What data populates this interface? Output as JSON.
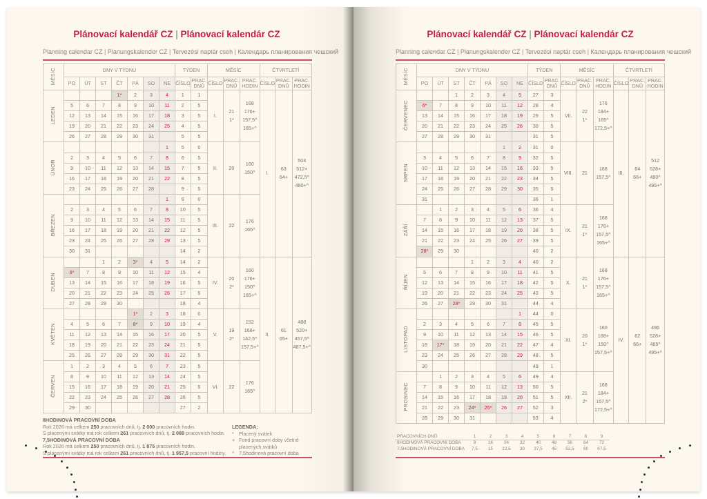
{
  "title_a": "Plánovací kalendář CZ",
  "title_sep": "|",
  "title_b": "Plánovací kalendár CZ",
  "subtitle": "Planning calendar CZ | Planungskalender CZ | Tervezési naptár cseh | Календарь планирования чешский",
  "headers": {
    "month": "MĚSÍC",
    "days_group": "DNY V TÝDNU",
    "week_group": "TÝDEN",
    "month_group": "MĚSÍC",
    "quarter_group": "ČTVRTLETÍ",
    "days": [
      "PO",
      "ÚT",
      "ST",
      "ČT",
      "PÁ",
      "SO",
      "NE"
    ],
    "number": "ČÍSLO",
    "workdays": "PRAC. DNŮ",
    "hours": "PRAC. HODIN"
  },
  "colors": {
    "accent": "#c8184f",
    "page": "#fcf8ee"
  },
  "left": {
    "months": [
      {
        "name": "LEDEN",
        "roman": "I.",
        "days": "21",
        "paid": "1*",
        "hours": [
          "168",
          "176+",
          "157,5^",
          "165+^"
        ],
        "weeks": [
          [
            "",
            "",
            "",
            "1*",
            "2",
            "3",
            "4",
            "1",
            "1"
          ],
          [
            "5",
            "6",
            "7",
            "8",
            "9",
            "10",
            "11",
            "2",
            "5"
          ],
          [
            "12",
            "13",
            "14",
            "15",
            "16",
            "17",
            "18",
            "3",
            "5"
          ],
          [
            "19",
            "20",
            "21",
            "22",
            "23",
            "24",
            "25",
            "4",
            "5"
          ],
          [
            "26",
            "27",
            "28",
            "29",
            "30",
            "31",
            "",
            "5",
            "5"
          ]
        ],
        "quarter": {
          "roman": "I.",
          "days": "63",
          "days_plus": "64+",
          "hours": [
            "504",
            "512+",
            "472,5^",
            "480+^"
          ]
        }
      },
      {
        "name": "ÚNOR",
        "roman": "II.",
        "days": "20",
        "paid": "",
        "hours": [
          "160",
          "150^"
        ],
        "weeks": [
          [
            "",
            "",
            "",
            "",
            "",
            "",
            "1",
            "5",
            "0"
          ],
          [
            "2",
            "3",
            "4",
            "5",
            "6",
            "7",
            "8",
            "6",
            "5"
          ],
          [
            "9",
            "10",
            "11",
            "12",
            "13",
            "14",
            "15",
            "7",
            "5"
          ],
          [
            "16",
            "17",
            "18",
            "19",
            "20",
            "21",
            "22",
            "8",
            "5"
          ],
          [
            "23",
            "24",
            "25",
            "26",
            "27",
            "28",
            "",
            "9",
            "5"
          ]
        ]
      },
      {
        "name": "BŘEZEN",
        "roman": "III.",
        "days": "22",
        "paid": "",
        "hours": [
          "176",
          "165^"
        ],
        "weeks": [
          [
            "",
            "",
            "",
            "",
            "",
            "",
            "1",
            "9",
            "0"
          ],
          [
            "2",
            "3",
            "4",
            "5",
            "6",
            "7",
            "8",
            "10",
            "5"
          ],
          [
            "9",
            "10",
            "11",
            "12",
            "13",
            "14",
            "15",
            "11",
            "5"
          ],
          [
            "16",
            "17",
            "18",
            "19",
            "20",
            "21",
            "22",
            "12",
            "5"
          ],
          [
            "23",
            "24",
            "25",
            "26",
            "27",
            "28",
            "29",
            "13",
            "5"
          ],
          [
            "30",
            "31",
            "",
            "",
            "",
            "",
            "",
            "14",
            "2"
          ]
        ]
      },
      {
        "name": "DUBEN",
        "roman": "IV.",
        "days": "20",
        "paid": "2*",
        "hours": [
          "160",
          "176+",
          "150^",
          "165+^"
        ],
        "weeks": [
          [
            "",
            "",
            "1",
            "2",
            "3*",
            "4",
            "5",
            "14",
            "2"
          ],
          [
            "6*",
            "7",
            "8",
            "9",
            "10",
            "11",
            "12",
            "15",
            "4"
          ],
          [
            "13",
            "14",
            "15",
            "16",
            "17",
            "18",
            "19",
            "16",
            "5"
          ],
          [
            "20",
            "21",
            "22",
            "23",
            "24",
            "25",
            "26",
            "17",
            "5"
          ],
          [
            "27",
            "28",
            "29",
            "30",
            "",
            "",
            "",
            "18",
            "4"
          ]
        ],
        "quarter": {
          "roman": "II.",
          "days": "61",
          "days_plus": "65+",
          "hours": [
            "488",
            "520+",
            "457,5^",
            "487,5+^"
          ]
        }
      },
      {
        "name": "KVĚTEN",
        "roman": "V.",
        "days": "19",
        "paid": "2*",
        "hours": [
          "152",
          "168+",
          "142,5^",
          "157,5+^"
        ],
        "weeks": [
          [
            "",
            "",
            "",
            "",
            "1*",
            "2",
            "3",
            "18",
            "0"
          ],
          [
            "4",
            "5",
            "6",
            "7",
            "8*",
            "9",
            "10",
            "19",
            "4"
          ],
          [
            "11",
            "12",
            "13",
            "14",
            "15",
            "16",
            "17",
            "20",
            "5"
          ],
          [
            "18",
            "19",
            "20",
            "21",
            "22",
            "23",
            "24",
            "21",
            "5"
          ],
          [
            "25",
            "26",
            "27",
            "28",
            "29",
            "30",
            "31",
            "22",
            "5"
          ]
        ]
      },
      {
        "name": "ČERVEN",
        "roman": "VI.",
        "days": "22",
        "paid": "",
        "hours": [
          "176",
          "165^"
        ],
        "weeks": [
          [
            "1",
            "2",
            "3",
            "4",
            "5",
            "6",
            "7",
            "23",
            "5"
          ],
          [
            "8",
            "9",
            "10",
            "11",
            "12",
            "13",
            "14",
            "24",
            "5"
          ],
          [
            "15",
            "16",
            "17",
            "18",
            "19",
            "20",
            "21",
            "25",
            "5"
          ],
          [
            "22",
            "23",
            "24",
            "25",
            "26",
            "27",
            "28",
            "26",
            "5"
          ],
          [
            "29",
            "30",
            "",
            "",
            "",
            "",
            "",
            "27",
            "2"
          ]
        ]
      }
    ]
  },
  "right": {
    "months": [
      {
        "name": "ČERVENEC",
        "roman": "VII.",
        "days": "22",
        "paid": "1*",
        "hours": [
          "176",
          "184+",
          "165^",
          "172,5+^"
        ],
        "weeks": [
          [
            "",
            "",
            "1",
            "2",
            "3",
            "4",
            "5",
            "27",
            "3"
          ],
          [
            "6*",
            "7",
            "8",
            "9",
            "10",
            "11",
            "12",
            "28",
            "4"
          ],
          [
            "13",
            "14",
            "15",
            "16",
            "17",
            "18",
            "19",
            "29",
            "5"
          ],
          [
            "20",
            "21",
            "22",
            "23",
            "24",
            "25",
            "26",
            "30",
            "5"
          ],
          [
            "27",
            "28",
            "29",
            "30",
            "31",
            "",
            "",
            "31",
            "5"
          ]
        ],
        "quarter": {
          "roman": "III.",
          "days": "64",
          "days_plus": "66+",
          "hours": [
            "512",
            "528+",
            "480^",
            "495+^"
          ]
        }
      },
      {
        "name": "SRPEN",
        "roman": "VIII.",
        "days": "21",
        "paid": "",
        "hours": [
          "168",
          "157,5^"
        ],
        "weeks": [
          [
            "",
            "",
            "",
            "",
            "",
            "1",
            "2",
            "31",
            "0"
          ],
          [
            "3",
            "4",
            "5",
            "6",
            "7",
            "8",
            "9",
            "32",
            "5"
          ],
          [
            "10",
            "11",
            "12",
            "13",
            "14",
            "15",
            "16",
            "33",
            "5"
          ],
          [
            "17",
            "18",
            "19",
            "20",
            "21",
            "22",
            "23",
            "34",
            "5"
          ],
          [
            "24",
            "25",
            "26",
            "27",
            "28",
            "29",
            "30",
            "35",
            "5"
          ],
          [
            "31",
            "",
            "",
            "",
            "",
            "",
            "",
            "36",
            "1"
          ]
        ]
      },
      {
        "name": "ZÁŘÍ",
        "roman": "IX.",
        "days": "21",
        "paid": "1*",
        "hours": [
          "168",
          "176+",
          "157,5^",
          "165+^"
        ],
        "weeks": [
          [
            "",
            "1",
            "2",
            "3",
            "4",
            "5",
            "6",
            "36",
            "4"
          ],
          [
            "7",
            "8",
            "9",
            "10",
            "11",
            "12",
            "13",
            "37",
            "5"
          ],
          [
            "14",
            "15",
            "16",
            "17",
            "18",
            "19",
            "20",
            "38",
            "5"
          ],
          [
            "21",
            "22",
            "23",
            "24",
            "25",
            "26",
            "27",
            "39",
            "5"
          ],
          [
            "28*",
            "29",
            "30",
            "",
            "",
            "",
            "",
            "40",
            "2"
          ]
        ]
      },
      {
        "name": "ŘÍJEN",
        "roman": "X.",
        "days": "21",
        "paid": "1*",
        "hours": [
          "168",
          "176+",
          "157,5^",
          "165+^"
        ],
        "weeks": [
          [
            "",
            "",
            "",
            "1",
            "2",
            "3",
            "4",
            "40",
            "2"
          ],
          [
            "5",
            "6",
            "7",
            "8",
            "9",
            "10",
            "11",
            "41",
            "5"
          ],
          [
            "12",
            "13",
            "14",
            "15",
            "16",
            "17",
            "18",
            "42",
            "5"
          ],
          [
            "19",
            "20",
            "21",
            "22",
            "23",
            "24",
            "25",
            "43",
            "5"
          ],
          [
            "26",
            "27",
            "28*",
            "29",
            "30",
            "31",
            "",
            "44",
            "4"
          ]
        ],
        "quarter": {
          "roman": "IV.",
          "days": "62",
          "days_plus": "66+",
          "hours": [
            "496",
            "528+",
            "465^",
            "495+^"
          ]
        }
      },
      {
        "name": "LISTOPAD",
        "roman": "XI.",
        "days": "20",
        "paid": "1*",
        "hours": [
          "160",
          "168+",
          "150^",
          "157,5+^"
        ],
        "weeks": [
          [
            "",
            "",
            "",
            "",
            "",
            "",
            "1",
            "44",
            "0"
          ],
          [
            "2",
            "3",
            "4",
            "5",
            "6",
            "7",
            "8",
            "45",
            "5"
          ],
          [
            "9",
            "10",
            "11",
            "12",
            "13",
            "14",
            "15",
            "46",
            "5"
          ],
          [
            "16",
            "17*",
            "18",
            "19",
            "20",
            "21",
            "22",
            "47",
            "4"
          ],
          [
            "23",
            "24",
            "25",
            "26",
            "27",
            "28",
            "29",
            "48",
            "5"
          ],
          [
            "30",
            "",
            "",
            "",
            "",
            "",
            "",
            "49",
            "1"
          ]
        ]
      },
      {
        "name": "PROSINEC",
        "roman": "XII.",
        "days": "21",
        "paid": "2*",
        "hours": [
          "168",
          "184+",
          "157,5^",
          "172,5+^"
        ],
        "weeks": [
          [
            "",
            "1",
            "2",
            "3",
            "4",
            "5",
            "6",
            "49",
            "4"
          ],
          [
            "7",
            "8",
            "9",
            "10",
            "11",
            "12",
            "13",
            "50",
            "5"
          ],
          [
            "14",
            "15",
            "16",
            "17",
            "18",
            "19",
            "20",
            "51",
            "5"
          ],
          [
            "21",
            "22",
            "23",
            "24*",
            "25*",
            "26",
            "27",
            "52",
            "3"
          ],
          [
            "28",
            "29",
            "30",
            "31",
            "",
            "",
            "",
            "53",
            "4"
          ]
        ]
      }
    ]
  },
  "notes": {
    "h8_title": "8HODINOVÁ PRACOVNÍ DOBA",
    "h8_l1": [
      "Rok 2026 má celkem ",
      "250",
      " pracovních dnů, tj. ",
      "2 000",
      " pracovních hodin."
    ],
    "h8_l2": [
      "S placenými svátky má rok celkem ",
      "261",
      " pracovních dnů, tj. ",
      "2 088",
      " pracovních hodin."
    ],
    "h75_title": "7,5HODINOVÁ PRACOVNÍ DOBA",
    "h75_l1": [
      "Rok 2026 má celkem ",
      "250",
      " pracovních dnů, tj. ",
      "1 875",
      " pracovních hodin."
    ],
    "h75_l2": [
      "S placenými svátky má rok celkem ",
      "261",
      " pracovních dnů, tj. ",
      "1 957,5",
      " pracovní hodiny."
    ],
    "legend_title": "LEGENDA:",
    "legend": [
      [
        "*",
        "Placený svátek"
      ],
      [
        "+",
        "Fond pracovní doby včetně placených svátků"
      ],
      [
        "^",
        "7,5hodinová pracovní doba"
      ]
    ]
  },
  "footer_table": {
    "rows": [
      {
        "label": "PRACOVNÍCH DNŮ",
        "values": [
          "1",
          "2",
          "3",
          "4",
          "5",
          "6",
          "7",
          "8",
          "9"
        ]
      },
      {
        "label": "8HODINOVÁ PRACOVNÍ DOBA",
        "values": [
          "8",
          "16",
          "24",
          "32",
          "40",
          "48",
          "56",
          "64",
          "72"
        ]
      },
      {
        "label": "7,5HODINOVÁ PRACOVNÍ DOBA",
        "values": [
          "7,5",
          "15",
          "22,5",
          "30",
          "37,5",
          "45",
          "52,5",
          "60",
          "67,5"
        ]
      }
    ]
  }
}
